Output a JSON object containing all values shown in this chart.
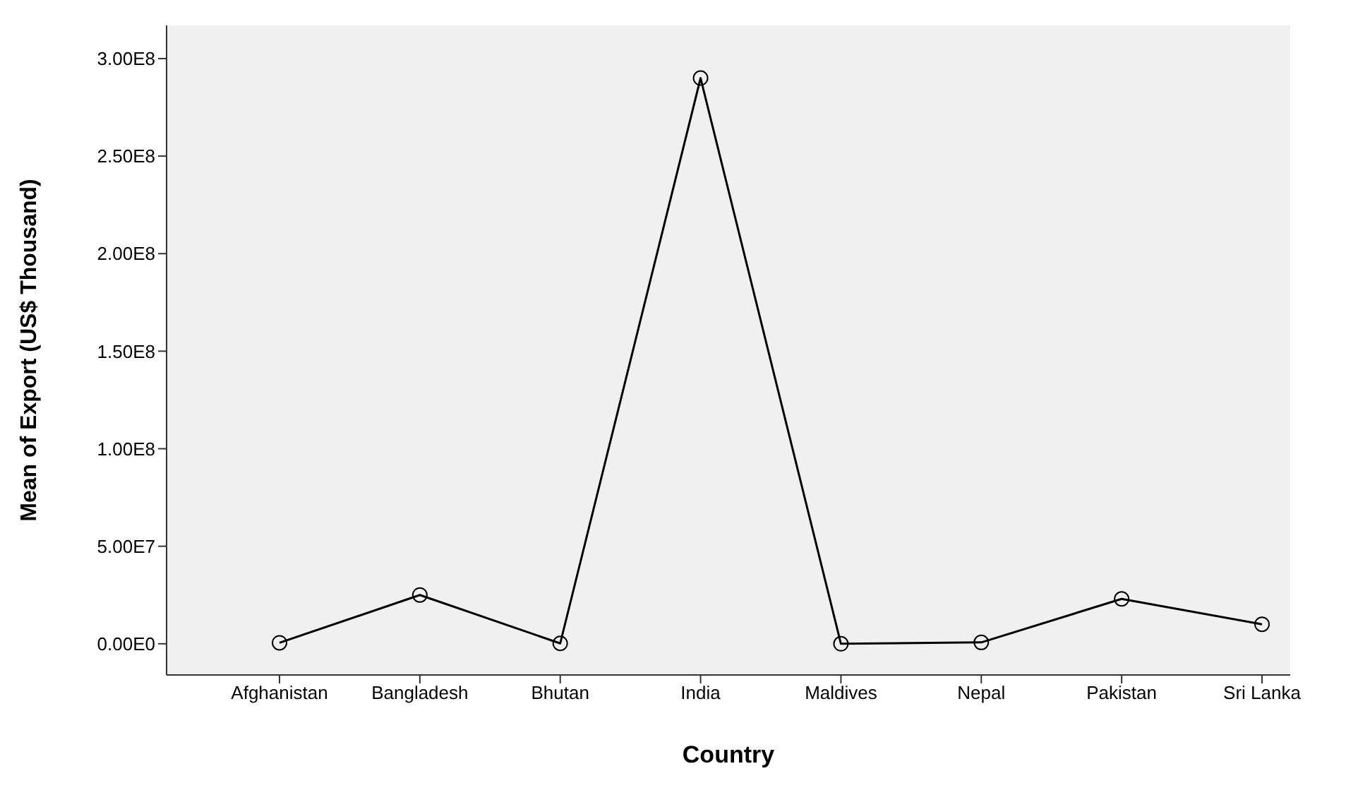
{
  "chart_data": {
    "type": "line",
    "xlabel": "Country",
    "ylabel": "Mean of Export (US$ Thousand)",
    "categories": [
      "Afghanistan",
      "Bangladesh",
      "Bhutan",
      "India",
      "Maldives",
      "Nepal",
      "Pakistan",
      "Sri Lanka"
    ],
    "series": [
      {
        "color": "#000000",
        "values": [
          500000,
          25000000,
          200000,
          290000000,
          0,
          700000,
          23000000,
          10000000
        ]
      }
    ],
    "ylim": [
      -16000000,
      317000000
    ],
    "yticks": [
      {
        "value": 0,
        "label": "0.00E0"
      },
      {
        "value": 50000000,
        "label": "5.00E7"
      },
      {
        "value": 100000000,
        "label": "1.00E8"
      },
      {
        "value": 150000000,
        "label": "1.50E8"
      },
      {
        "value": 200000000,
        "label": "2.00E8"
      },
      {
        "value": 250000000,
        "label": "2.50E8"
      },
      {
        "value": 300000000,
        "label": "3.00E8"
      }
    ],
    "marker": "circle",
    "grid": false,
    "legend": false
  }
}
